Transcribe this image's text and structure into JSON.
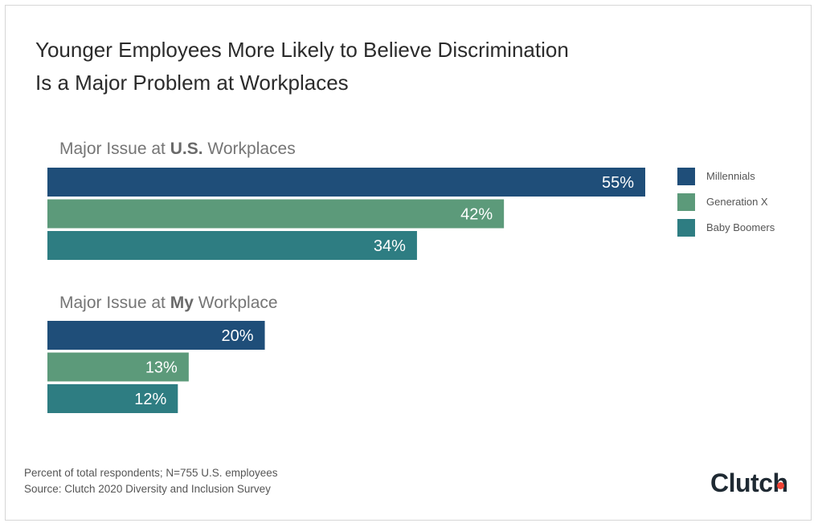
{
  "title_lines": [
    "Younger Employees More Likely to Believe Discrimination",
    "Is a Major Problem at Workplaces"
  ],
  "groups": [
    {
      "label_prefix": "Major Issue at ",
      "label_bold": "U.S.",
      "label_suffix": " Workplaces"
    },
    {
      "label_prefix": "Major Issue at ",
      "label_bold": "My",
      "label_suffix": " Workplace"
    }
  ],
  "legend": [
    {
      "name": "Millennials",
      "color": "#1f4e79"
    },
    {
      "name": "Generation X",
      "color": "#5c9a7a"
    },
    {
      "name": "Baby Boomers",
      "color": "#2e7d82"
    }
  ],
  "chart_data": {
    "type": "bar",
    "orientation": "horizontal",
    "categories": [
      "Major Issue at U.S. Workplaces",
      "Major Issue at My Workplace"
    ],
    "series": [
      {
        "name": "Millennials",
        "values": [
          55,
          20
        ]
      },
      {
        "name": "Generation X",
        "values": [
          42,
          13
        ]
      },
      {
        "name": "Baby Boomers",
        "values": [
          34,
          12
        ]
      }
    ],
    "value_suffix": "%",
    "xlim": [
      0,
      55
    ],
    "grid": false,
    "legend_position": "right"
  },
  "footnotes": [
    "Percent of total respondents; N=755 U.S. employees",
    "Source: Clutch 2020 Diversity and Inclusion Survey"
  ],
  "brand": {
    "name": "Clutch",
    "dot_color": "#ef4335"
  }
}
